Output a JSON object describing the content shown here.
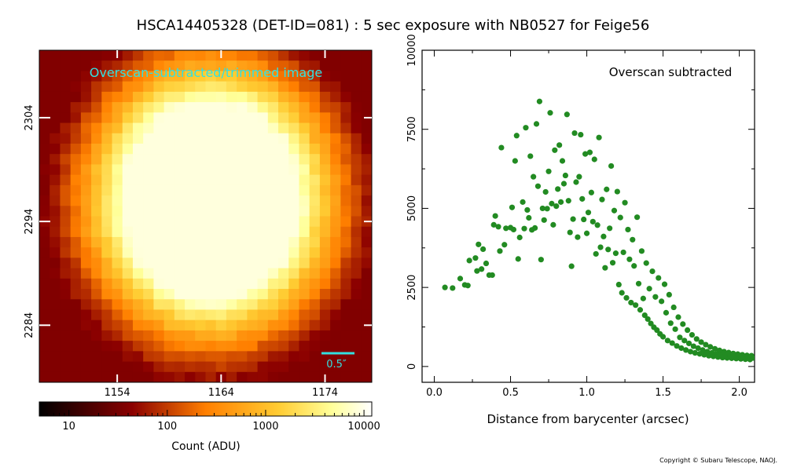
{
  "title": "HSCA14405328 (DET-ID=081) :  5 sec exposure with NB0527 for Feige56",
  "copyright": "Copyright © Subaru Telescope, NAOJ.",
  "colors": {
    "scatter": "#228B22",
    "overlay_text": "#33e0e0",
    "scale_bar": "#33e0e0"
  },
  "chart_data": [
    {
      "type": "heatmap",
      "colormap": "afmhot",
      "scale": "log",
      "annotation": "Overscan-subtracted/trimmed image",
      "scale_bar_label": "0.5″",
      "x_ticks": [
        "1154",
        "1164",
        "1174"
      ],
      "y_ticks": [
        "2304",
        "2294",
        "2284"
      ],
      "x_tick_values": [
        1154,
        1164,
        1174
      ],
      "y_tick_values": [
        2304,
        2294,
        2284
      ],
      "x_range": [
        1146.5,
        1178.5
      ],
      "y_range": [
        2278.5,
        2310.5
      ],
      "source_center": [
        1163,
        2296
      ],
      "colorbar": {
        "label": "Count (ADU)",
        "ticks": [
          "10",
          "100",
          "1000",
          "10000"
        ],
        "range": [
          5,
          12000
        ]
      }
    },
    {
      "type": "scatter",
      "annotation": "Overscan subtracted",
      "xlabel": "Distance from barycenter (arcsec)",
      "ylabel": "",
      "xlim": [
        -0.08,
        2.1
      ],
      "ylim": [
        -500,
        10000
      ],
      "x_ticks": [
        "0.0",
        "0.5",
        "1.0",
        "1.5",
        "2.0"
      ],
      "x_tick_values": [
        0.0,
        0.5,
        1.0,
        1.5,
        2.0
      ],
      "y_ticks": [
        "0",
        "2500",
        "5000",
        "7500",
        "10000"
      ],
      "y_tick_values": [
        0,
        2500,
        5000,
        7500,
        10000
      ],
      "series": [
        {
          "marker_color": "#228B22",
          "points": [
            [
              0.07,
              2500
            ],
            [
              0.12,
              2480
            ],
            [
              0.17,
              2780
            ],
            [
              0.2,
              2580
            ],
            [
              0.22,
              2560
            ],
            [
              0.23,
              3350
            ],
            [
              0.27,
              3430
            ],
            [
              0.28,
              3020
            ],
            [
              0.29,
              3860
            ],
            [
              0.31,
              3080
            ],
            [
              0.32,
              3710
            ],
            [
              0.34,
              3260
            ],
            [
              0.36,
              2890
            ],
            [
              0.38,
              2890
            ],
            [
              0.39,
              4480
            ],
            [
              0.4,
              4760
            ],
            [
              0.42,
              4420
            ],
            [
              0.43,
              3650
            ],
            [
              0.44,
              6920
            ],
            [
              0.46,
              3850
            ],
            [
              0.47,
              4370
            ],
            [
              0.5,
              4390
            ],
            [
              0.51,
              5030
            ],
            [
              0.52,
              4330
            ],
            [
              0.53,
              6500
            ],
            [
              0.54,
              7300
            ],
            [
              0.55,
              3400
            ],
            [
              0.56,
              4080
            ],
            [
              0.58,
              5200
            ],
            [
              0.59,
              4360
            ],
            [
              0.6,
              7550
            ],
            [
              0.61,
              4950
            ],
            [
              0.62,
              4700
            ],
            [
              0.63,
              6650
            ],
            [
              0.64,
              4320
            ],
            [
              0.65,
              6000
            ],
            [
              0.66,
              4380
            ],
            [
              0.67,
              7670
            ],
            [
              0.68,
              5700
            ],
            [
              0.69,
              8380
            ],
            [
              0.7,
              3380
            ],
            [
              0.71,
              5000
            ],
            [
              0.72,
              4630
            ],
            [
              0.73,
              5520
            ],
            [
              0.74,
              4990
            ],
            [
              0.75,
              6170
            ],
            [
              0.76,
              8020
            ],
            [
              0.77,
              5150
            ],
            [
              0.78,
              4480
            ],
            [
              0.79,
              6840
            ],
            [
              0.8,
              5070
            ],
            [
              0.81,
              5610
            ],
            [
              0.82,
              7000
            ],
            [
              0.83,
              5200
            ],
            [
              0.84,
              6500
            ],
            [
              0.85,
              5780
            ],
            [
              0.86,
              6040
            ],
            [
              0.87,
              7970
            ],
            [
              0.88,
              5240
            ],
            [
              0.89,
              4240
            ],
            [
              0.9,
              3170
            ],
            [
              0.91,
              4660
            ],
            [
              0.92,
              7380
            ],
            [
              0.93,
              5830
            ],
            [
              0.94,
              4090
            ],
            [
              0.95,
              6000
            ],
            [
              0.96,
              7330
            ],
            [
              0.97,
              5300
            ],
            [
              0.98,
              4650
            ],
            [
              0.99,
              6720
            ],
            [
              1.0,
              4210
            ],
            [
              1.01,
              4870
            ],
            [
              1.02,
              6770
            ],
            [
              1.03,
              5500
            ],
            [
              1.04,
              4580
            ],
            [
              1.05,
              6550
            ],
            [
              1.06,
              3560
            ],
            [
              1.07,
              4470
            ],
            [
              1.08,
              7240
            ],
            [
              1.09,
              3770
            ],
            [
              1.1,
              5280
            ],
            [
              1.11,
              4110
            ],
            [
              1.12,
              3120
            ],
            [
              1.13,
              5600
            ],
            [
              1.14,
              3700
            ],
            [
              1.15,
              4370
            ],
            [
              1.16,
              6340
            ],
            [
              1.17,
              3280
            ],
            [
              1.18,
              4930
            ],
            [
              1.19,
              3580
            ],
            [
              1.2,
              5530
            ],
            [
              1.21,
              2590
            ],
            [
              1.22,
              4710
            ],
            [
              1.23,
              2330
            ],
            [
              1.24,
              3610
            ],
            [
              1.25,
              5180
            ],
            [
              1.26,
              2170
            ],
            [
              1.27,
              4330
            ],
            [
              1.28,
              3390
            ],
            [
              1.29,
              2020
            ],
            [
              1.3,
              4010
            ],
            [
              1.31,
              3180
            ],
            [
              1.32,
              1940
            ],
            [
              1.33,
              4720
            ],
            [
              1.34,
              2620
            ],
            [
              1.35,
              1790
            ],
            [
              1.36,
              3650
            ],
            [
              1.37,
              2150
            ],
            [
              1.38,
              1620
            ],
            [
              1.39,
              3270
            ],
            [
              1.4,
              1500
            ],
            [
              1.41,
              2460
            ],
            [
              1.42,
              1360
            ],
            [
              1.43,
              3010
            ],
            [
              1.44,
              1240
            ],
            [
              1.45,
              2200
            ],
            [
              1.46,
              1150
            ],
            [
              1.47,
              2800
            ],
            [
              1.48,
              1030
            ],
            [
              1.49,
              2060
            ],
            [
              1.5,
              940
            ],
            [
              1.51,
              2600
            ],
            [
              1.52,
              1700
            ],
            [
              1.53,
              820
            ],
            [
              1.54,
              2270
            ],
            [
              1.55,
              1370
            ],
            [
              1.56,
              740
            ],
            [
              1.57,
              1870
            ],
            [
              1.58,
              1180
            ],
            [
              1.59,
              650
            ],
            [
              1.6,
              1560
            ],
            [
              1.61,
              920
            ],
            [
              1.62,
              580
            ],
            [
              1.63,
              1340
            ],
            [
              1.64,
              820
            ],
            [
              1.65,
              520
            ],
            [
              1.66,
              1150
            ],
            [
              1.67,
              730
            ],
            [
              1.68,
              470
            ],
            [
              1.69,
              1000
            ],
            [
              1.7,
              640
            ],
            [
              1.71,
              430
            ],
            [
              1.72,
              870
            ],
            [
              1.73,
              580
            ],
            [
              1.74,
              400
            ],
            [
              1.75,
              770
            ],
            [
              1.76,
              520
            ],
            [
              1.77,
              370
            ],
            [
              1.78,
              690
            ],
            [
              1.79,
              470
            ],
            [
              1.8,
              340
            ],
            [
              1.81,
              620
            ],
            [
              1.82,
              430
            ],
            [
              1.83,
              320
            ],
            [
              1.84,
              560
            ],
            [
              1.85,
              400
            ],
            [
              1.86,
              300
            ],
            [
              1.87,
              510
            ],
            [
              1.88,
              370
            ],
            [
              1.89,
              280
            ],
            [
              1.9,
              470
            ],
            [
              1.91,
              350
            ],
            [
              1.92,
              270
            ],
            [
              1.93,
              440
            ],
            [
              1.94,
              330
            ],
            [
              1.95,
              260
            ],
            [
              1.96,
              410
            ],
            [
              1.97,
              310
            ],
            [
              1.98,
              250
            ],
            [
              1.99,
              390
            ],
            [
              2.0,
              300
            ],
            [
              2.01,
              240
            ],
            [
              2.02,
              370
            ],
            [
              2.03,
              290
            ],
            [
              2.04,
              230
            ],
            [
              2.05,
              350
            ],
            [
              2.06,
              280
            ],
            [
              2.07,
              220
            ],
            [
              2.08,
              340
            ],
            [
              2.09,
              270
            ]
          ]
        }
      ]
    }
  ]
}
